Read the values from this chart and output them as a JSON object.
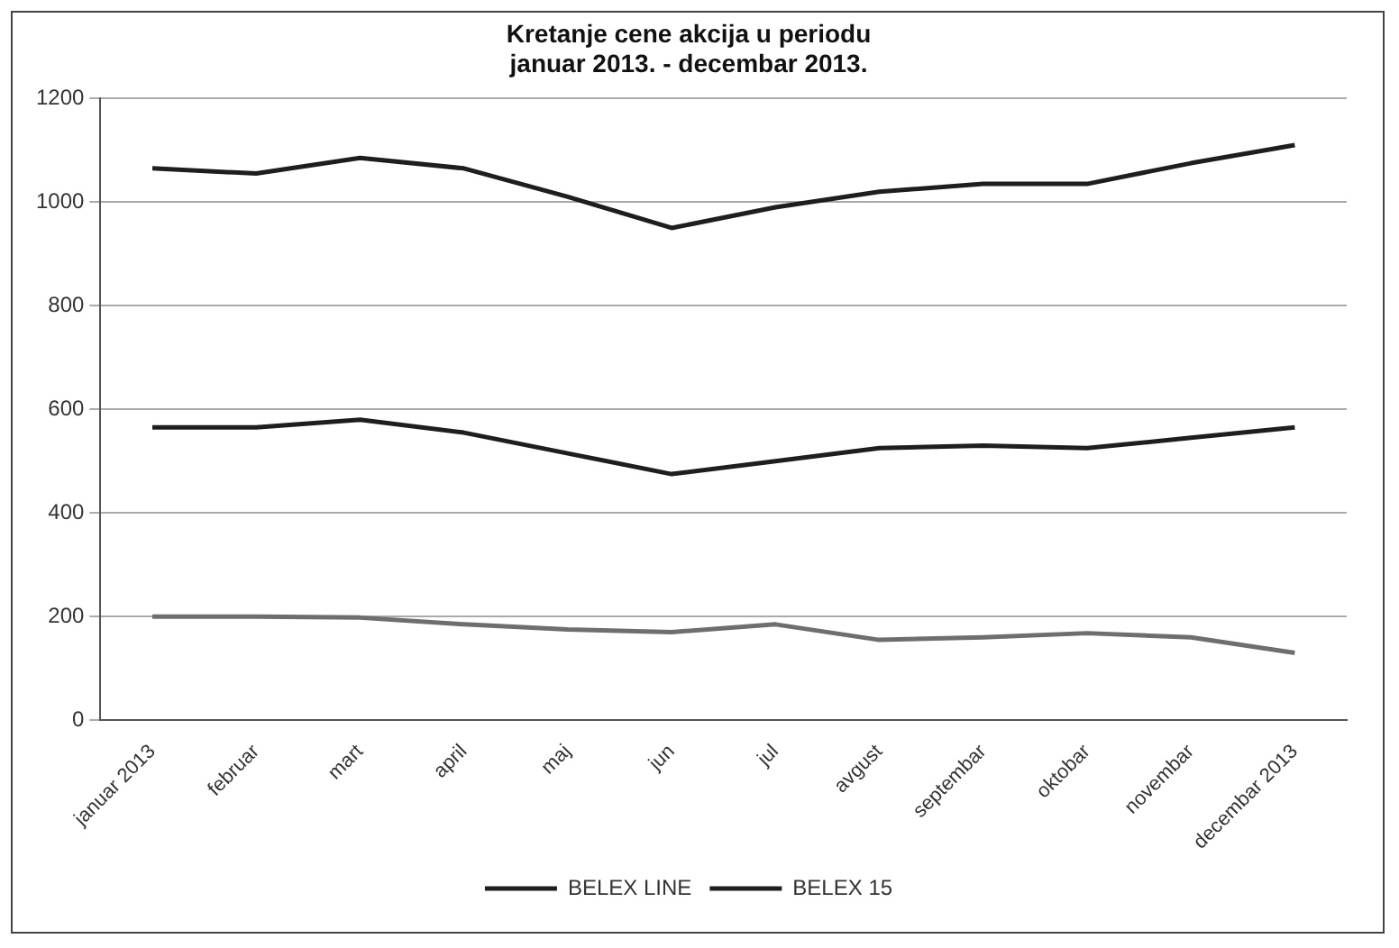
{
  "chart_data": {
    "type": "line",
    "title": [
      "Kretanje cene akcija u periodu",
      "januar 2013. - decembar 2013."
    ],
    "categories": [
      "januar 2013",
      "februar",
      "mart",
      "april",
      "maj",
      "jun",
      "jul",
      "avgust",
      "septembar",
      "oktobar",
      "novembar",
      "decembar 2013"
    ],
    "series": [
      {
        "name": "BELEX LINE",
        "color": "#1e1e1e",
        "values": [
          1065,
          1055,
          1085,
          1065,
          1010,
          950,
          990,
          1020,
          1035,
          1035,
          1075,
          1110
        ]
      },
      {
        "name": "BELEX 15",
        "color": "#1e1e1e",
        "values": [
          565,
          565,
          580,
          555,
          515,
          475,
          500,
          525,
          530,
          525,
          545,
          565
        ]
      },
      {
        "color": "#6e6e6e",
        "values": [
          200,
          200,
          198,
          185,
          175,
          170,
          185,
          155,
          160,
          168,
          160,
          130
        ]
      }
    ],
    "ylim": [
      0,
      1200
    ],
    "yticks": [
      0,
      200,
      400,
      600,
      800,
      1000,
      1200
    ],
    "grid": "y",
    "legend": "bottom",
    "marker": "none",
    "line_style": "solid"
  }
}
